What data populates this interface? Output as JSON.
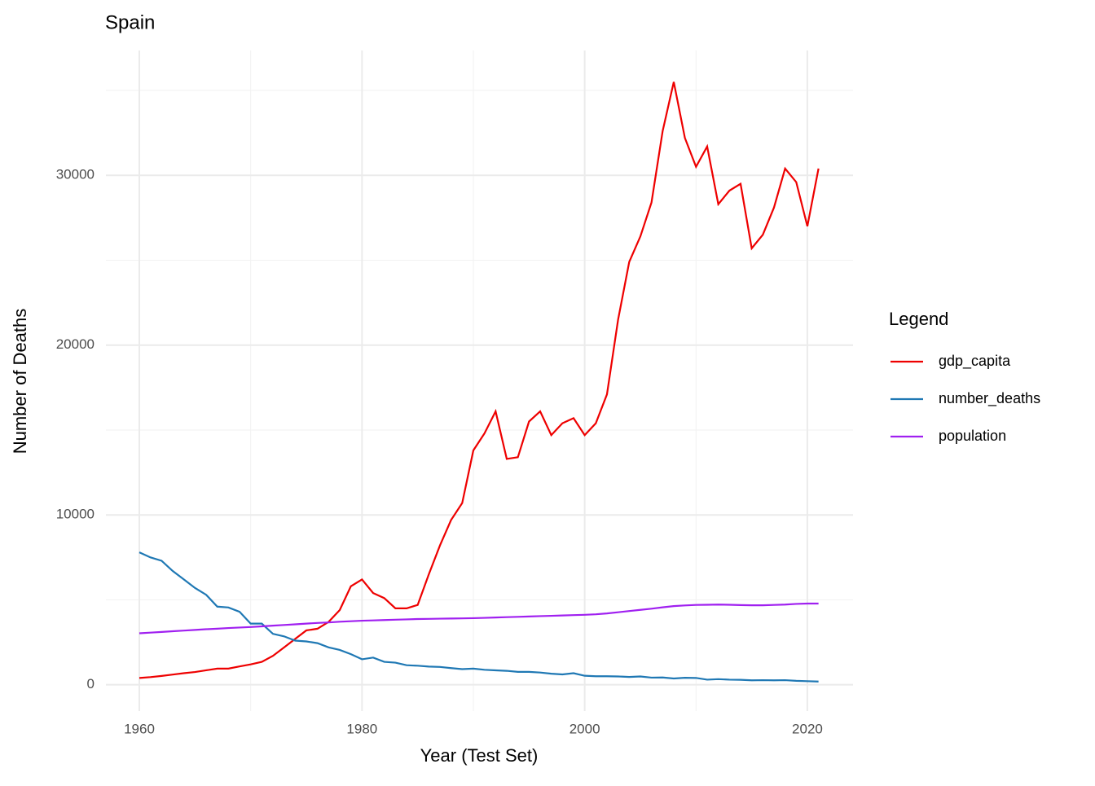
{
  "chart_data": {
    "type": "line",
    "title": "Spain",
    "x_label": "Year (Test Set)",
    "y_label": "Number of Deaths",
    "legend_title": "Legend",
    "legend_position": "right",
    "x": [
      1960,
      1961,
      1962,
      1963,
      1964,
      1965,
      1966,
      1967,
      1968,
      1969,
      1970,
      1971,
      1972,
      1973,
      1974,
      1975,
      1976,
      1977,
      1978,
      1979,
      1980,
      1981,
      1982,
      1983,
      1984,
      1985,
      1986,
      1987,
      1988,
      1989,
      1990,
      1991,
      1992,
      1993,
      1994,
      1995,
      1996,
      1997,
      1998,
      1999,
      2000,
      2001,
      2002,
      2003,
      2004,
      2005,
      2006,
      2007,
      2008,
      2009,
      2010,
      2011,
      2012,
      2013,
      2014,
      2015,
      2016,
      2017,
      2018,
      2019,
      2020,
      2021
    ],
    "series": [
      {
        "name": "gdp_capita",
        "color": "#ee0000",
        "values": [
          400,
          450,
          520,
          600,
          680,
          750,
          850,
          950,
          950,
          1080,
          1200,
          1350,
          1700,
          2200,
          2700,
          3200,
          3300,
          3700,
          4400,
          5800,
          6200,
          5400,
          5100,
          4500,
          4500,
          4700,
          6500,
          8200,
          9700,
          10700,
          13800,
          14800,
          16100,
          13300,
          13400,
          15500,
          16100,
          14700,
          15400,
          15700,
          14700,
          15400,
          17100,
          21500,
          24900,
          26400,
          28400,
          32600,
          35500,
          32200,
          30500,
          31700,
          28300,
          29100,
          29500,
          25700,
          26500,
          28100,
          30400,
          29600,
          27000,
          30400
        ]
      },
      {
        "name": "number_deaths",
        "color": "#1f78b4",
        "values": [
          7800,
          7500,
          7300,
          6700,
          6200,
          5700,
          5300,
          4600,
          4550,
          4300,
          3600,
          3600,
          3000,
          2850,
          2600,
          2550,
          2450,
          2200,
          2050,
          1800,
          1500,
          1600,
          1350,
          1300,
          1150,
          1120,
          1070,
          1050,
          980,
          920,
          950,
          880,
          850,
          820,
          760,
          760,
          720,
          650,
          610,
          680,
          530,
          500,
          500,
          490,
          460,
          490,
          420,
          430,
          370,
          410,
          400,
          300,
          330,
          300,
          290,
          260,
          270,
          260,
          270,
          230,
          210,
          190
        ]
      },
      {
        "name": "population",
        "color": "#a020f0",
        "values": [
          3030,
          3070,
          3110,
          3150,
          3190,
          3230,
          3270,
          3300,
          3340,
          3370,
          3400,
          3440,
          3480,
          3520,
          3560,
          3600,
          3640,
          3670,
          3710,
          3740,
          3770,
          3790,
          3810,
          3830,
          3850,
          3870,
          3880,
          3890,
          3900,
          3910,
          3920,
          3940,
          3960,
          3980,
          4000,
          4020,
          4040,
          4060,
          4080,
          4100,
          4120,
          4150,
          4200,
          4270,
          4340,
          4410,
          4480,
          4560,
          4630,
          4670,
          4700,
          4710,
          4720,
          4710,
          4690,
          4680,
          4680,
          4700,
          4720,
          4760,
          4780,
          4780
        ]
      }
    ],
    "xlim": [
      1957,
      2024.1
    ],
    "ylim": [
      -1550,
      37350
    ],
    "xticks": [
      1960,
      1980,
      2000,
      2020
    ],
    "yticks": [
      0,
      10000,
      20000,
      30000
    ],
    "x_minor_ticks": [
      1970,
      1990,
      2010
    ],
    "y_minor_ticks": [
      5000,
      15000,
      25000,
      35000
    ],
    "grid": true
  }
}
